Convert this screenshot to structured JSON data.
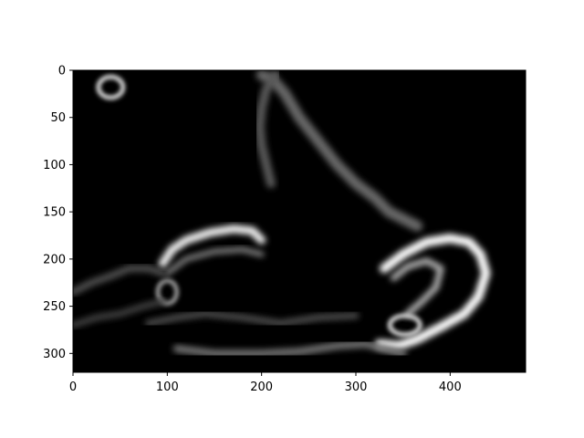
{
  "chart_data": {
    "type": "heatmap",
    "title": "",
    "xlabel": "",
    "ylabel": "",
    "colormap": "gray",
    "background_color": "#000000",
    "xlim": [
      0,
      480
    ],
    "ylim": [
      320,
      0
    ],
    "x_ticks": [
      0,
      100,
      200,
      300,
      400
    ],
    "y_ticks": [
      0,
      50,
      100,
      150,
      200,
      250,
      300
    ],
    "x_tick_labels": [
      "0",
      "100",
      "200",
      "300",
      "400"
    ],
    "y_tick_labels": [
      "0",
      "50",
      "100",
      "150",
      "200",
      "250",
      "300"
    ],
    "grid": false,
    "bright_features": [
      {
        "name": "dot",
        "type": "blob",
        "x": 40,
        "y": 18,
        "rx": 13,
        "ry": 11,
        "intensity": 0.85
      },
      {
        "name": "wing-upper-edge",
        "type": "path",
        "points": [
          [
            200,
            5
          ],
          [
            212,
            10
          ],
          [
            225,
            25
          ],
          [
            240,
            50
          ],
          [
            260,
            75
          ],
          [
            280,
            100
          ],
          [
            300,
            120
          ],
          [
            320,
            135
          ],
          [
            335,
            150
          ],
          [
            355,
            160
          ],
          [
            365,
            165
          ]
        ],
        "intensity": 0.4,
        "width": 12
      },
      {
        "name": "wing-lower-edge",
        "type": "path",
        "points": [
          [
            215,
            5
          ],
          [
            205,
            20
          ],
          [
            200,
            40
          ],
          [
            198,
            60
          ],
          [
            200,
            80
          ],
          [
            205,
            100
          ],
          [
            210,
            120
          ]
        ],
        "intensity": 0.35,
        "width": 10
      },
      {
        "name": "left-limb",
        "type": "path",
        "points": [
          [
            95,
            205
          ],
          [
            105,
            190
          ],
          [
            120,
            180
          ],
          [
            145,
            172
          ],
          [
            170,
            168
          ],
          [
            190,
            170
          ],
          [
            200,
            180
          ]
        ],
        "intensity": 0.95,
        "width": 9
      },
      {
        "name": "left-limb-inner",
        "type": "path",
        "points": [
          [
            100,
            215
          ],
          [
            120,
            200
          ],
          [
            150,
            192
          ],
          [
            180,
            190
          ],
          [
            200,
            195
          ]
        ],
        "intensity": 0.5,
        "width": 6
      },
      {
        "name": "right-loop-outer",
        "type": "path",
        "points": [
          [
            330,
            210
          ],
          [
            350,
            195
          ],
          [
            375,
            182
          ],
          [
            400,
            178
          ],
          [
            420,
            182
          ],
          [
            432,
            195
          ],
          [
            438,
            215
          ],
          [
            430,
            240
          ],
          [
            415,
            258
          ],
          [
            390,
            272
          ],
          [
            365,
            285
          ],
          [
            345,
            292
          ],
          [
            325,
            290
          ]
        ],
        "intensity": 1.0,
        "width": 10
      },
      {
        "name": "right-loop-inner",
        "type": "path",
        "points": [
          [
            340,
            220
          ],
          [
            355,
            208
          ],
          [
            375,
            202
          ],
          [
            390,
            210
          ],
          [
            385,
            230
          ],
          [
            370,
            245
          ],
          [
            355,
            258
          ]
        ],
        "intensity": 0.7,
        "width": 7
      },
      {
        "name": "right-blob",
        "type": "blob",
        "x": 352,
        "y": 270,
        "rx": 16,
        "ry": 10,
        "intensity": 0.85
      },
      {
        "name": "left-blob",
        "type": "blob",
        "x": 100,
        "y": 235,
        "rx": 10,
        "ry": 12,
        "intensity": 0.6
      },
      {
        "name": "bottom-edge",
        "type": "path",
        "points": [
          [
            110,
            295
          ],
          [
            150,
            300
          ],
          [
            200,
            300
          ],
          [
            240,
            298
          ],
          [
            280,
            292
          ],
          [
            310,
            290
          ],
          [
            330,
            295
          ],
          [
            350,
            300
          ]
        ],
        "intensity": 0.45,
        "width": 8
      },
      {
        "name": "bottom-ridge",
        "type": "path",
        "points": [
          [
            80,
            268
          ],
          [
            110,
            262
          ],
          [
            140,
            258
          ],
          [
            180,
            262
          ],
          [
            220,
            268
          ],
          [
            260,
            262
          ],
          [
            300,
            260
          ]
        ],
        "intensity": 0.3,
        "width": 7
      },
      {
        "name": "left-edge-texture",
        "type": "path",
        "points": [
          [
            0,
            235
          ],
          [
            20,
            225
          ],
          [
            40,
            218
          ],
          [
            60,
            210
          ],
          [
            80,
            210
          ],
          [
            95,
            215
          ]
        ],
        "intensity": 0.3,
        "width": 8
      },
      {
        "name": "left-edge-texture-2",
        "type": "path",
        "points": [
          [
            0,
            270
          ],
          [
            25,
            262
          ],
          [
            50,
            258
          ],
          [
            75,
            250
          ],
          [
            95,
            245
          ]
        ],
        "intensity": 0.25,
        "width": 7
      }
    ]
  }
}
